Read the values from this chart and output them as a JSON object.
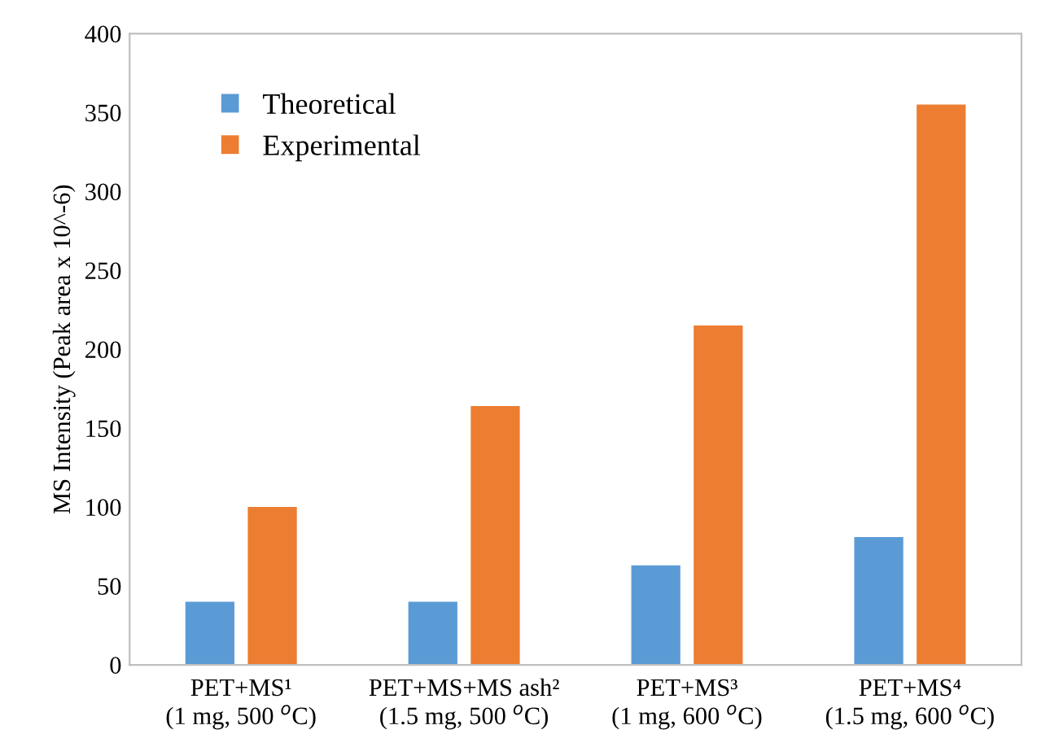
{
  "chart_data": {
    "type": "bar",
    "ylabel": "MS Intensity (Peak area x 10^-6)",
    "categories": [
      "PET+MS¹\n(1 mg, 500 $^{o}$C)",
      "PET+MS+MS ash²\n(1.5 mg, 500 $^{o}$C)",
      "PET+MS³\n(1 mg, 600 $^{o}$C)",
      "PET+MS⁴\n(1.5 mg, 600 $^{o}$C)"
    ],
    "series": [
      {
        "name": "Theoretical",
        "color": "#5b9bd5",
        "values": [
          40,
          40,
          63,
          81
        ]
      },
      {
        "name": "Experimental",
        "color": "#ed7d31",
        "values": [
          100,
          164,
          215,
          355
        ]
      }
    ],
    "ylim": [
      0,
      400
    ],
    "yticks": [
      0,
      50,
      100,
      150,
      200,
      250,
      300,
      350,
      400
    ],
    "grid": false,
    "legend": "top left"
  }
}
